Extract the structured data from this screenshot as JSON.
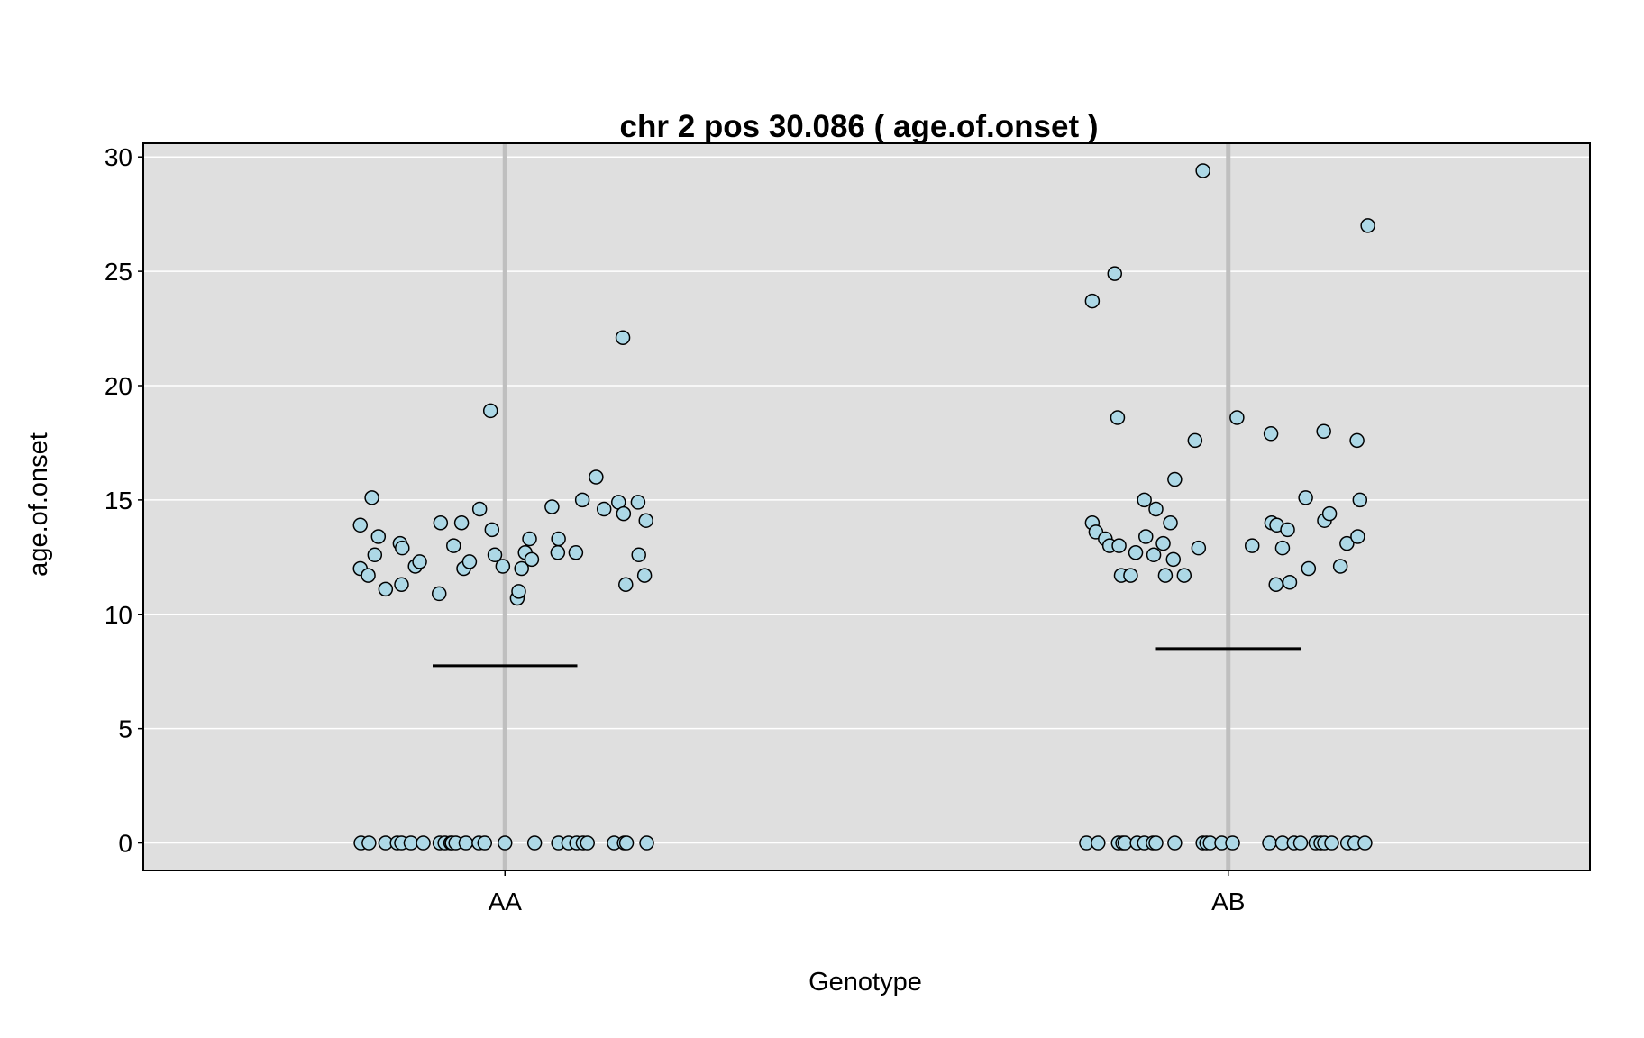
{
  "chart_data": {
    "type": "scatter",
    "title": "chr 2 pos 30.086 ( age.of.onset )",
    "xlabel": "Genotype",
    "ylabel": "age.of.onset",
    "categories": [
      "AA",
      "AB"
    ],
    "ylim": [
      -1.2,
      30.6
    ],
    "yticks": [
      "0",
      "5",
      "10",
      "15",
      "20",
      "25",
      "30"
    ],
    "grid": true,
    "colors": {
      "panel_background": "#dfdfdf",
      "gridline": "#ffffff",
      "category_line": "#bfbfbf",
      "point_fill": "#add8e6",
      "point_stroke": "#000000",
      "mean_line": "#000000"
    },
    "means": [
      {
        "category": "AA",
        "value": 7.75
      },
      {
        "category": "AB",
        "value": 8.5
      }
    ],
    "series": [
      {
        "category": "AA",
        "points": [
          [
            -0.2,
            13.9
          ],
          [
            -0.2,
            12.0
          ],
          [
            -0.184,
            15.1
          ],
          [
            -0.18,
            12.6
          ],
          [
            -0.175,
            13.4
          ],
          [
            -0.189,
            11.7
          ],
          [
            -0.165,
            11.1
          ],
          [
            -0.145,
            13.1
          ],
          [
            -0.142,
            12.9
          ],
          [
            -0.143,
            11.3
          ],
          [
            -0.124,
            12.1
          ],
          [
            -0.118,
            12.3
          ],
          [
            -0.091,
            10.9
          ],
          [
            -0.089,
            14.0
          ],
          [
            -0.071,
            13.0
          ],
          [
            -0.06,
            14.0
          ],
          [
            -0.057,
            12.0
          ],
          [
            -0.049,
            12.3
          ],
          [
            -0.035,
            14.6
          ],
          [
            -0.02,
            18.9
          ],
          [
            -0.018,
            13.7
          ],
          [
            -0.014,
            12.6
          ],
          [
            -0.003,
            12.1
          ],
          [
            0.017,
            10.7
          ],
          [
            0.019,
            11.0
          ],
          [
            0.023,
            12.0
          ],
          [
            0.028,
            12.7
          ],
          [
            0.034,
            13.3
          ],
          [
            0.037,
            12.4
          ],
          [
            0.065,
            14.7
          ],
          [
            0.073,
            12.7
          ],
          [
            0.074,
            13.3
          ],
          [
            0.098,
            12.7
          ],
          [
            0.107,
            15.0
          ],
          [
            0.126,
            16.0
          ],
          [
            0.137,
            14.6
          ],
          [
            0.157,
            14.9
          ],
          [
            0.163,
            22.1
          ],
          [
            0.164,
            14.4
          ],
          [
            0.167,
            11.3
          ],
          [
            0.184,
            14.9
          ],
          [
            0.185,
            12.6
          ],
          [
            0.193,
            11.7
          ],
          [
            0.195,
            14.1
          ],
          [
            -0.199,
            0
          ],
          [
            -0.188,
            0
          ],
          [
            -0.165,
            0
          ],
          [
            -0.149,
            0
          ],
          [
            -0.143,
            0
          ],
          [
            -0.13,
            0
          ],
          [
            -0.113,
            0
          ],
          [
            -0.09,
            0
          ],
          [
            -0.083,
            0
          ],
          [
            -0.075,
            0
          ],
          [
            -0.073,
            0
          ],
          [
            -0.068,
            0
          ],
          [
            -0.054,
            0
          ],
          [
            -0.036,
            0
          ],
          [
            -0.028,
            0
          ],
          [
            0.0,
            0
          ],
          [
            0.041,
            0
          ],
          [
            0.074,
            0
          ],
          [
            0.088,
            0
          ],
          [
            0.099,
            0
          ],
          [
            0.108,
            0
          ],
          [
            0.114,
            0
          ],
          [
            0.151,
            0
          ],
          [
            0.165,
            0
          ],
          [
            0.168,
            0
          ],
          [
            0.196,
            0
          ]
        ]
      },
      {
        "category": "AB",
        "points": [
          [
            -0.188,
            23.7
          ],
          [
            -0.188,
            14.0
          ],
          [
            -0.183,
            13.6
          ],
          [
            -0.17,
            13.3
          ],
          [
            -0.164,
            13.0
          ],
          [
            -0.157,
            24.9
          ],
          [
            -0.153,
            18.6
          ],
          [
            -0.151,
            13.0
          ],
          [
            -0.148,
            11.7
          ],
          [
            -0.135,
            11.7
          ],
          [
            -0.128,
            12.7
          ],
          [
            -0.116,
            15.0
          ],
          [
            -0.114,
            13.4
          ],
          [
            -0.103,
            12.6
          ],
          [
            -0.1,
            14.6
          ],
          [
            -0.09,
            13.1
          ],
          [
            -0.087,
            11.7
          ],
          [
            -0.08,
            14.0
          ],
          [
            -0.076,
            12.4
          ],
          [
            -0.074,
            15.9
          ],
          [
            -0.061,
            11.7
          ],
          [
            -0.046,
            17.6
          ],
          [
            -0.041,
            12.9
          ],
          [
            -0.035,
            29.4
          ],
          [
            0.012,
            18.6
          ],
          [
            0.033,
            13.0
          ],
          [
            0.059,
            17.9
          ],
          [
            0.06,
            14.0
          ],
          [
            0.066,
            11.3
          ],
          [
            0.067,
            13.9
          ],
          [
            0.075,
            12.9
          ],
          [
            0.082,
            13.7
          ],
          [
            0.085,
            11.4
          ],
          [
            0.107,
            15.1
          ],
          [
            0.111,
            12.0
          ],
          [
            0.132,
            18.0
          ],
          [
            0.133,
            14.1
          ],
          [
            0.14,
            14.4
          ],
          [
            0.155,
            12.1
          ],
          [
            0.164,
            13.1
          ],
          [
            0.178,
            17.6
          ],
          [
            0.179,
            13.4
          ],
          [
            0.182,
            15.0
          ],
          [
            0.193,
            27.0
          ],
          [
            -0.196,
            0
          ],
          [
            -0.18,
            0
          ],
          [
            -0.152,
            0
          ],
          [
            -0.146,
            0
          ],
          [
            -0.143,
            0
          ],
          [
            -0.126,
            0
          ],
          [
            -0.116,
            0
          ],
          [
            -0.104,
            0
          ],
          [
            -0.1,
            0
          ],
          [
            -0.074,
            0
          ],
          [
            -0.035,
            0
          ],
          [
            -0.03,
            0
          ],
          [
            -0.025,
            0
          ],
          [
            -0.009,
            0
          ],
          [
            0.006,
            0
          ],
          [
            0.057,
            0
          ],
          [
            0.075,
            0
          ],
          [
            0.091,
            0
          ],
          [
            0.1,
            0
          ],
          [
            0.121,
            0
          ],
          [
            0.128,
            0
          ],
          [
            0.133,
            0
          ],
          [
            0.143,
            0
          ],
          [
            0.165,
            0
          ],
          [
            0.175,
            0
          ],
          [
            0.189,
            0
          ]
        ]
      }
    ]
  }
}
